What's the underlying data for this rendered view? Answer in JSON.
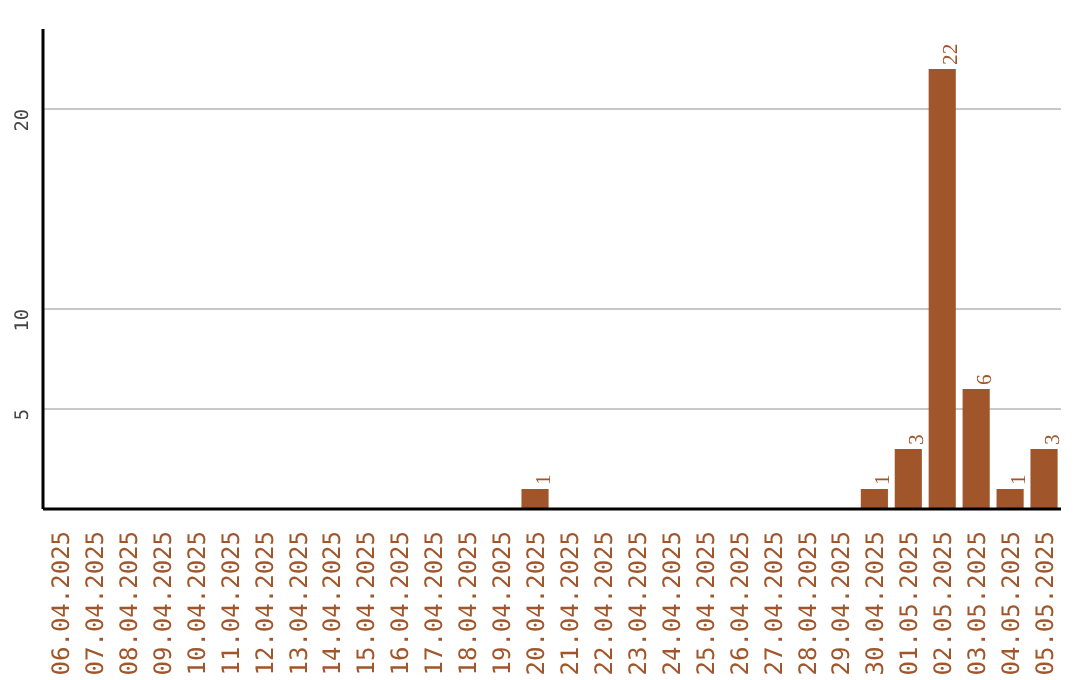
{
  "chart_data": {
    "type": "bar",
    "categories": [
      "06.04.2025",
      "07.04.2025",
      "08.04.2025",
      "09.04.2025",
      "10.04.2025",
      "11.04.2025",
      "12.04.2025",
      "13.04.2025",
      "14.04.2025",
      "15.04.2025",
      "16.04.2025",
      "17.04.2025",
      "18.04.2025",
      "19.04.2025",
      "20.04.2025",
      "21.04.2025",
      "22.04.2025",
      "23.04.2025",
      "24.04.2025",
      "25.04.2025",
      "26.04.2025",
      "27.04.2025",
      "28.04.2025",
      "29.04.2025",
      "30.04.2025",
      "01.05.2025",
      "02.05.2025",
      "03.05.2025",
      "04.05.2025",
      "05.05.2025"
    ],
    "values": [
      0,
      0,
      0,
      0,
      0,
      0,
      0,
      0,
      0,
      0,
      0,
      0,
      0,
      0,
      1,
      0,
      0,
      0,
      0,
      0,
      0,
      0,
      0,
      0,
      1,
      3,
      22,
      6,
      1,
      3
    ],
    "value_labels": [
      null,
      null,
      null,
      null,
      null,
      null,
      null,
      null,
      null,
      null,
      null,
      null,
      null,
      null,
      "1",
      null,
      null,
      null,
      null,
      null,
      null,
      null,
      null,
      null,
      "1",
      "3",
      "22",
      "6",
      "1",
      "3"
    ],
    "color": "#a0562a",
    "ylim": [
      0,
      24
    ],
    "yticks": [
      5,
      10,
      20
    ],
    "grid": "y"
  }
}
